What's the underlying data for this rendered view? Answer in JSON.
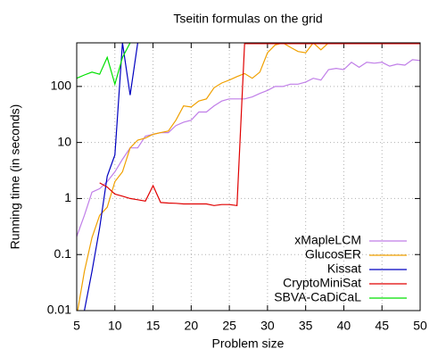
{
  "chart_data": {
    "type": "line",
    "title": "Tseitin formulas on the grid",
    "x_label": "Problem size",
    "y_label": "Running time (in seconds)",
    "x": [
      5,
      6,
      7,
      8,
      9,
      10,
      11,
      12,
      13,
      14,
      15,
      16,
      17,
      18,
      19,
      20,
      21,
      22,
      23,
      24,
      25,
      26,
      27,
      28,
      29,
      30,
      31,
      32,
      33,
      34,
      35,
      36,
      37,
      38,
      39,
      40,
      41,
      42,
      43,
      44,
      45,
      46,
      47,
      48,
      49,
      50
    ],
    "series": [
      {
        "name": "xMapleLCM",
        "color": "#c07ee8",
        "values": [
          0.21,
          0.5,
          1.3,
          1.5,
          2,
          3,
          5,
          8,
          8,
          13,
          14,
          15,
          15,
          20,
          23,
          25,
          35,
          35,
          45,
          55,
          60,
          60,
          60,
          65,
          75,
          85,
          100,
          100,
          110,
          110,
          120,
          140,
          130,
          200,
          210,
          200,
          270,
          220,
          270,
          260,
          270,
          230,
          250,
          240,
          300,
          290
        ]
      },
      {
        "name": "GlucosER",
        "color": "#f0a000",
        "values": [
          0.008,
          0.05,
          0.2,
          0.5,
          0.7,
          2,
          3,
          8,
          11,
          12,
          14,
          15,
          16,
          25,
          45,
          43,
          55,
          60,
          95,
          115,
          130,
          150,
          170,
          140,
          180,
          400,
          550,
          600,
          500,
          420,
          400,
          600,
          450,
          600,
          600,
          600,
          600,
          600,
          600,
          600,
          600,
          600,
          600,
          600,
          600,
          600
        ]
      },
      {
        "name": "Kissat",
        "color": "#0000c0",
        "values": [
          0.005,
          0.01,
          0.05,
          0.3,
          2.5,
          6,
          600,
          70,
          600,
          null,
          null,
          null,
          null,
          null,
          null,
          null,
          null,
          null,
          null,
          null,
          null,
          null,
          null,
          null,
          null,
          null,
          null,
          null,
          null,
          null,
          null,
          null,
          null,
          null,
          null,
          null,
          null,
          null,
          null,
          null,
          null,
          null,
          null,
          null,
          null,
          null
        ]
      },
      {
        "name": "CryptoMiniSat",
        "color": "#e00000",
        "values": [
          null,
          null,
          null,
          1.9,
          1.6,
          1.2,
          1.1,
          1.0,
          0.95,
          0.9,
          1.7,
          0.85,
          0.83,
          0.82,
          0.8,
          0.8,
          0.8,
          0.8,
          0.75,
          0.78,
          0.78,
          0.75,
          580,
          580,
          580,
          580,
          580,
          580,
          580,
          580,
          580,
          580,
          580,
          580,
          580,
          580,
          580,
          580,
          580,
          580,
          580,
          580,
          580,
          580,
          580,
          580
        ]
      },
      {
        "name": "SBVA-CaDiCaL",
        "color": "#00e000",
        "values": [
          140,
          160,
          180,
          165,
          330,
          110,
          330,
          600,
          null,
          null,
          null,
          null,
          null,
          null,
          null,
          null,
          null,
          null,
          null,
          null,
          null,
          null,
          null,
          null,
          null,
          null,
          null,
          null,
          null,
          null,
          null,
          null,
          null,
          null,
          null,
          null,
          null,
          null,
          null,
          null,
          null,
          null,
          null,
          null,
          null,
          null
        ]
      }
    ],
    "xlim": [
      5,
      50
    ],
    "xticks": [
      5,
      10,
      15,
      20,
      25,
      30,
      35,
      40,
      45,
      50
    ],
    "ylim": [
      0.01,
      600
    ],
    "yticks": [
      0.01,
      0.1,
      1,
      10,
      100
    ],
    "ylog": true,
    "grid": true,
    "legend": "lower right"
  }
}
